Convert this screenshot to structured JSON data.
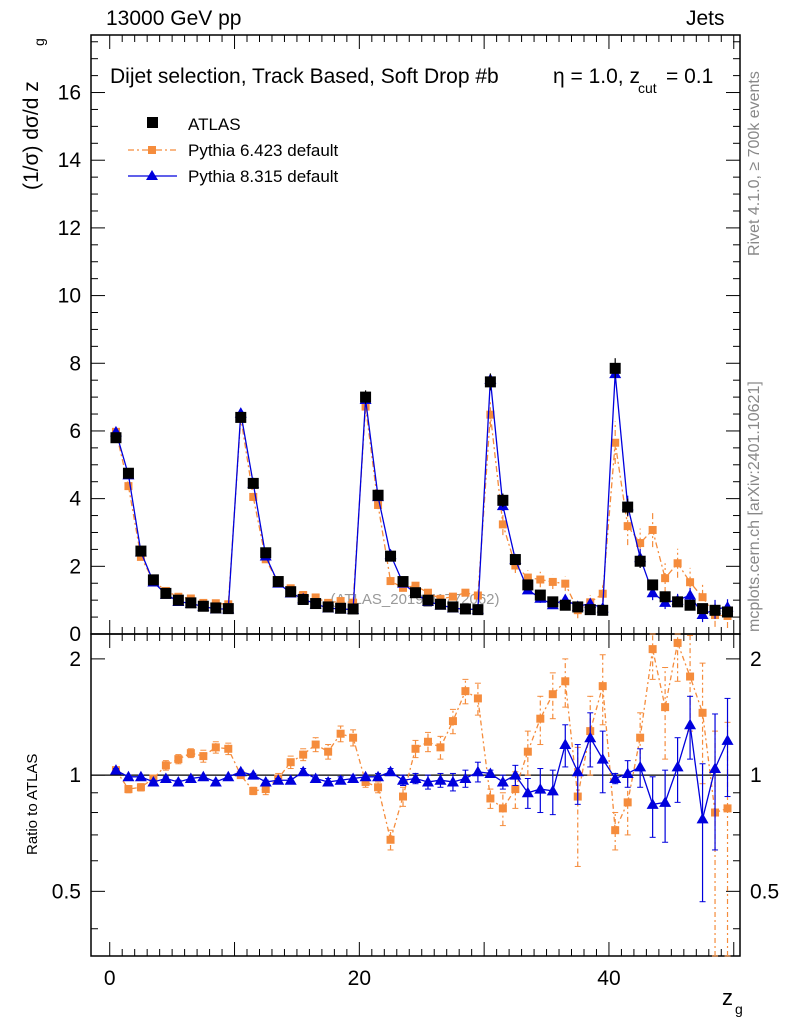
{
  "header": {
    "left": "13000 GeV pp",
    "right": "Jets"
  },
  "side_text": {
    "rivet": "Rivet 4.1.0, ≥ 700k events",
    "mcplots": "mcplots.cern.ch [arXiv:2401.10621]"
  },
  "colors": {
    "atlas": "#000000",
    "pythia6": "#f58c3c",
    "pythia8": "#0000dd",
    "watermark": "#999999"
  },
  "chart_data": {
    "type": "scatter",
    "title": "Dijet selection, Track Based, Soft Drop #b",
    "title_eta": "η = 1.0, z",
    "title_cut_sub": "cut",
    "title_cut_val": " = 0.1",
    "watermark": "(ATLAS_2019_I1772062)",
    "xlabel": "z",
    "xlabel_sub": "g",
    "ylabel": "(1/σ) dσ/d z",
    "ylabel_sub": "g",
    "ratio_ylabel": "Ratio to ATLAS",
    "xlim": [
      -1.5,
      50.5
    ],
    "ylim_main": [
      0,
      17.7
    ],
    "ylim_ratio": [
      0.34,
      2.32
    ],
    "xticks": [
      0,
      20,
      40
    ],
    "yticks_main": [
      0,
      2,
      4,
      6,
      8,
      10,
      12,
      14,
      16
    ],
    "yticks_ratio": [
      0.5,
      1,
      2
    ],
    "legend": [
      "ATLAS",
      "Pythia 6.423 default",
      "Pythia 8.315 default"
    ],
    "x": [
      0.5,
      1.5,
      2.5,
      3.5,
      4.5,
      5.5,
      6.5,
      7.5,
      8.5,
      9.5,
      10.5,
      11.5,
      12.5,
      13.5,
      14.5,
      15.5,
      16.5,
      17.5,
      18.5,
      19.5,
      20.5,
      21.5,
      22.5,
      23.5,
      24.5,
      25.5,
      26.5,
      27.5,
      28.5,
      29.5,
      30.5,
      31.5,
      32.5,
      33.5,
      34.5,
      35.5,
      36.5,
      37.5,
      38.5,
      39.5,
      40.5,
      41.5,
      42.5,
      43.5,
      44.5,
      45.5,
      46.5,
      47.5,
      48.5,
      49.5
    ],
    "series": [
      {
        "name": "ATLAS",
        "values": [
          5.8,
          4.75,
          2.45,
          1.6,
          1.2,
          1.0,
          0.92,
          0.82,
          0.77,
          0.75,
          6.4,
          4.45,
          2.4,
          1.55,
          1.25,
          1.02,
          0.9,
          0.8,
          0.76,
          0.74,
          7.0,
          4.1,
          2.3,
          1.55,
          1.22,
          1.0,
          0.88,
          0.8,
          0.74,
          0.72,
          7.45,
          3.95,
          2.2,
          1.45,
          1.15,
          0.95,
          0.85,
          0.8,
          0.72,
          0.7,
          7.85,
          3.75,
          2.15,
          1.45,
          1.1,
          0.95,
          0.85,
          0.75,
          0.7,
          0.65
        ],
        "errors": [
          0.15,
          0.1,
          0.08,
          0.06,
          0.05,
          0.05,
          0.05,
          0.04,
          0.04,
          0.04,
          0.15,
          0.12,
          0.08,
          0.06,
          0.05,
          0.05,
          0.05,
          0.04,
          0.04,
          0.04,
          0.2,
          0.15,
          0.1,
          0.08,
          0.06,
          0.06,
          0.05,
          0.05,
          0.05,
          0.05,
          0.25,
          0.2,
          0.15,
          0.1,
          0.1,
          0.08,
          0.08,
          0.07,
          0.07,
          0.07,
          0.3,
          0.25,
          0.2,
          0.15,
          0.15,
          0.12,
          0.12,
          0.1,
          0.1,
          0.1
        ]
      },
      {
        "name": "Pythia 6.423 default",
        "ratio": [
          1.03,
          0.92,
          0.93,
          0.98,
          1.06,
          1.1,
          1.14,
          1.12,
          1.18,
          1.17,
          1.0,
          0.91,
          0.92,
          0.98,
          1.08,
          1.13,
          1.2,
          1.15,
          1.28,
          1.25,
          0.96,
          0.93,
          0.68,
          0.88,
          1.17,
          1.22,
          1.18,
          1.38,
          1.65,
          1.58,
          0.87,
          0.82,
          0.92,
          1.15,
          1.4,
          1.62,
          1.75,
          0.88,
          1.3,
          1.7,
          0.72,
          0.85,
          1.25,
          2.12,
          1.5,
          2.2,
          1.8,
          1.45,
          0.8,
          0.82
        ],
        "ratio_errors": [
          0.02,
          0.02,
          0.02,
          0.02,
          0.03,
          0.03,
          0.03,
          0.04,
          0.04,
          0.04,
          0.02,
          0.02,
          0.03,
          0.03,
          0.04,
          0.04,
          0.05,
          0.05,
          0.06,
          0.06,
          0.03,
          0.03,
          0.04,
          0.05,
          0.06,
          0.07,
          0.08,
          0.1,
          0.12,
          0.15,
          0.05,
          0.08,
          0.1,
          0.15,
          0.2,
          0.22,
          0.25,
          0.3,
          0.3,
          0.35,
          0.08,
          0.15,
          0.2,
          0.35,
          0.4,
          0.45,
          0.5,
          0.5,
          0.5,
          0.55
        ]
      },
      {
        "name": "Pythia 8.315 default",
        "ratio": [
          1.03,
          0.99,
          0.99,
          0.96,
          0.98,
          0.96,
          0.98,
          0.99,
          0.96,
          0.99,
          1.02,
          1.0,
          0.96,
          0.97,
          0.97,
          1.02,
          0.98,
          0.96,
          0.97,
          0.98,
          0.99,
          0.99,
          1.02,
          0.97,
          0.98,
          0.96,
          0.97,
          0.96,
          0.98,
          1.02,
          1.01,
          0.96,
          1.0,
          0.9,
          0.92,
          0.91,
          1.2,
          1.02,
          1.25,
          1.1,
          0.98,
          1.01,
          1.05,
          0.84,
          0.85,
          1.05,
          1.35,
          0.77,
          1.04,
          1.23
        ],
        "ratio_errors": [
          0.01,
          0.01,
          0.01,
          0.01,
          0.01,
          0.01,
          0.01,
          0.01,
          0.01,
          0.01,
          0.01,
          0.01,
          0.01,
          0.01,
          0.01,
          0.02,
          0.02,
          0.02,
          0.02,
          0.02,
          0.01,
          0.02,
          0.02,
          0.03,
          0.03,
          0.04,
          0.04,
          0.05,
          0.05,
          0.06,
          0.02,
          0.04,
          0.06,
          0.08,
          0.12,
          0.12,
          0.15,
          0.18,
          0.2,
          0.2,
          0.03,
          0.08,
          0.12,
          0.15,
          0.18,
          0.2,
          0.25,
          0.3,
          0.4,
          0.35
        ]
      }
    ]
  }
}
